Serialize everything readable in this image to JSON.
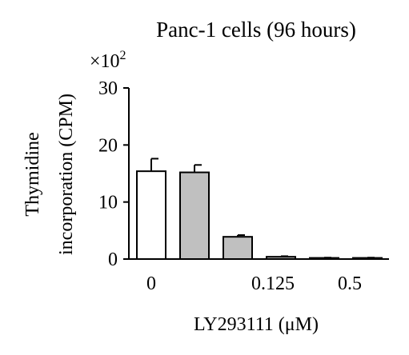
{
  "chart_data": {
    "type": "bar",
    "title": "Panc-1 cells (96 hours)",
    "ylabel_line1": "Thymidine",
    "ylabel_line2": "incorporation (CPM)",
    "xlabel": "LY293111 (μM)",
    "y_multiplier": "×10",
    "y_multiplier_exponent": "2",
    "ylim": [
      0,
      30
    ],
    "yticks": [
      0,
      10,
      20,
      30
    ],
    "ytick_labels": [
      "0",
      "10",
      "20",
      "30"
    ],
    "xtick_labels": [
      "0",
      "0.125",
      "0.5"
    ],
    "bars": [
      {
        "value": 15.4,
        "error": 2.2,
        "fill": "#ffffff"
      },
      {
        "value": 15.2,
        "error": 1.3,
        "fill": "#c0c0c0"
      },
      {
        "value": 3.9,
        "error": 0.3,
        "fill": "#c0c0c0"
      },
      {
        "value": 0.4,
        "error": 0.1,
        "fill": "#c0c0c0"
      },
      {
        "value": 0.2,
        "error": 0.05,
        "fill": "#c0c0c0"
      },
      {
        "value": 0.2,
        "error": 0.05,
        "fill": "#c0c0c0"
      }
    ]
  }
}
